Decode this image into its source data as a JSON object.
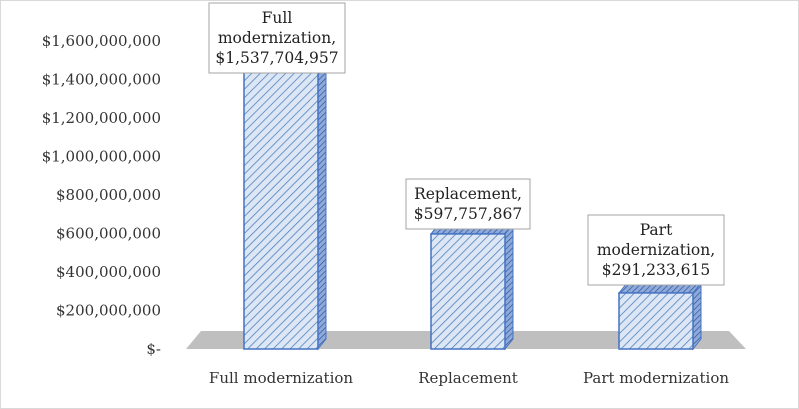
{
  "chart_data": {
    "type": "bar",
    "categories": [
      "Full modernization",
      "Replacement",
      "Part modernization"
    ],
    "values": [
      1537704957,
      597757867,
      291233615
    ],
    "data_labels": [
      [
        "Full",
        "modernization,",
        "$1,537,704,957"
      ],
      [
        "Replacement,",
        "$597,757,867"
      ],
      [
        "Part",
        "modernization,",
        "$291,233,615"
      ]
    ],
    "y_ticks": [
      {
        "value": 0,
        "label": "$-"
      },
      {
        "value": 200000000,
        "label": "$200,000,000"
      },
      {
        "value": 400000000,
        "label": "$400,000,000"
      },
      {
        "value": 600000000,
        "label": "$600,000,000"
      },
      {
        "value": 800000000,
        "label": "$800,000,000"
      },
      {
        "value": 1000000000,
        "label": "$1,000,000,000"
      },
      {
        "value": 1200000000,
        "label": "$1,200,000,000"
      },
      {
        "value": 1400000000,
        "label": "$1,400,000,000"
      },
      {
        "value": 1600000000,
        "label": "$1,600,000,000"
      }
    ],
    "ylim": [
      0,
      1600000000
    ],
    "title": "",
    "xlabel": "",
    "ylabel": "",
    "grid": false,
    "legend": "none",
    "style": "3d-column",
    "colors": {
      "bar_fill": "#dce6f4",
      "bar_hatch": "#4f81bd",
      "bar_edge": "#4472c4",
      "floor": "#bfbfbf"
    }
  }
}
